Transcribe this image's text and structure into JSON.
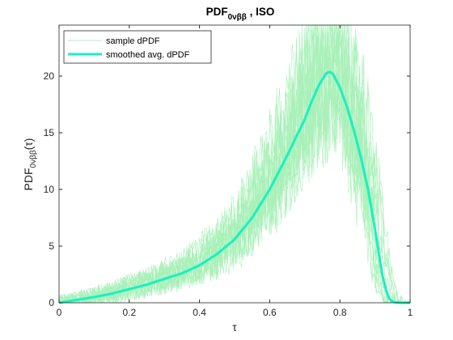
{
  "chart_data": {
    "type": "line",
    "title_main": "PDF",
    "title_sub": "0νββ",
    "title_suffix": " , ISO",
    "xlabel": "τ",
    "ylabel_main": "PDF",
    "ylabel_sub": "0νββ",
    "ylabel_suffix": "(τ)",
    "xlim": [
      0,
      1
    ],
    "ylim": [
      0,
      24.5
    ],
    "xticks": [
      0,
      0.2,
      0.4,
      0.6,
      0.8,
      1
    ],
    "xtick_labels": [
      "0",
      "0.2",
      "0.4",
      "0.6",
      "0.8",
      "1"
    ],
    "yticks": [
      0,
      5,
      10,
      15,
      20
    ],
    "ytick_labels": [
      "0",
      "5",
      "10",
      "15",
      "20"
    ],
    "grid": false,
    "legend_position": "top-left",
    "sample_color": "#a8f0b8",
    "smoothed_color": "#19f0c0",
    "series": [
      {
        "name": "smoothed avg. dPDF",
        "x": [
          0,
          0.05,
          0.1,
          0.15,
          0.2,
          0.25,
          0.3,
          0.35,
          0.4,
          0.45,
          0.5,
          0.55,
          0.6,
          0.65,
          0.7,
          0.72,
          0.74,
          0.76,
          0.77,
          0.78,
          0.8,
          0.82,
          0.84,
          0.86,
          0.88,
          0.9,
          0.91,
          0.92,
          0.93,
          0.94,
          0.95,
          0.96,
          0.97,
          1.0
        ],
        "y": [
          0,
          0.25,
          0.5,
          0.8,
          1.2,
          1.6,
          2.1,
          2.6,
          3.3,
          4.3,
          5.6,
          7.5,
          10.0,
          13.0,
          16.2,
          17.8,
          19.2,
          20.2,
          20.4,
          20.2,
          19.0,
          17.3,
          15.2,
          12.8,
          10.0,
          6.5,
          4.5,
          2.6,
          1.2,
          0.4,
          0.1,
          0.02,
          0,
          0
        ]
      }
    ],
    "sample_series_name": "sample dPDF",
    "sample_count": 15
  }
}
